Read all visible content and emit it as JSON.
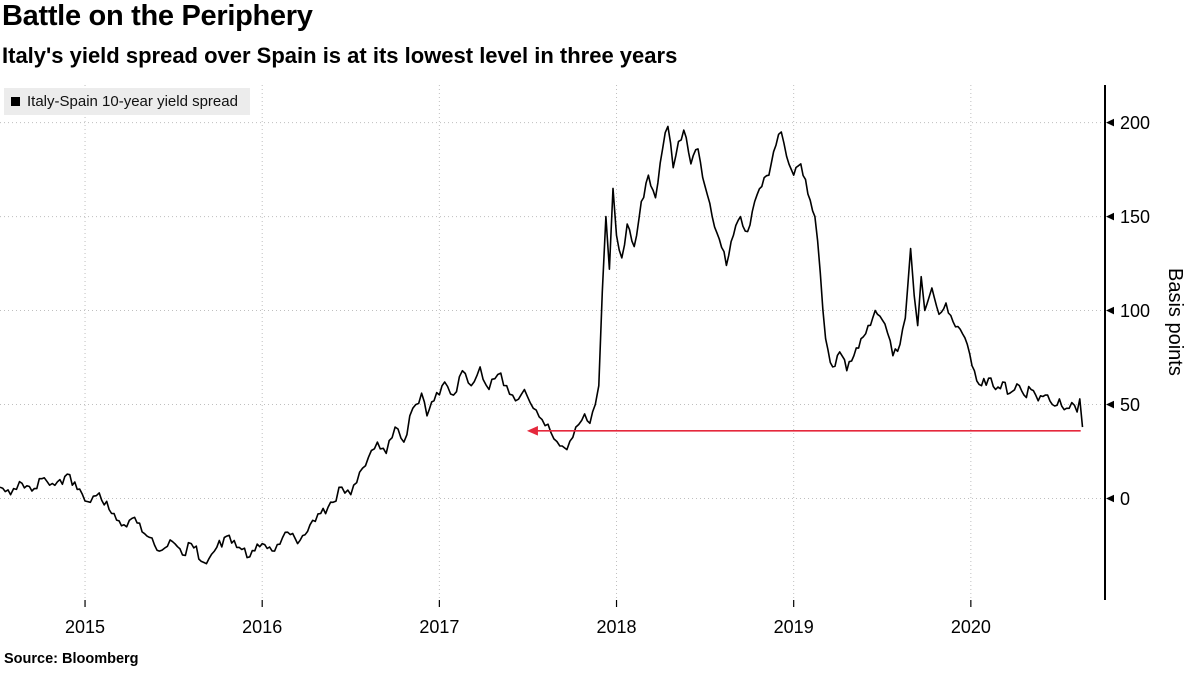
{
  "chart_data": {
    "type": "line",
    "title": "Battle on the Periphery",
    "subtitle": "Italy's yield spread over Spain is at its lowest level in three years",
    "xlabel": "",
    "ylabel": "Basis points",
    "x_ticks": [
      2015,
      2016,
      2017,
      2018,
      2019,
      2020
    ],
    "y_ticks": [
      0,
      50,
      100,
      150,
      200
    ],
    "xlim": [
      2014.52,
      2020.65
    ],
    "ylim": [
      -54,
      220
    ],
    "grid": true,
    "legend_position": "top-left",
    "series": [
      {
        "name": "Italy-Spain 10-year yield spread",
        "color": "#000000",
        "points": [
          [
            2014.52,
            6
          ],
          [
            2014.58,
            2
          ],
          [
            2014.63,
            9
          ],
          [
            2014.7,
            4
          ],
          [
            2014.77,
            11
          ],
          [
            2014.83,
            7
          ],
          [
            2014.9,
            13
          ],
          [
            2014.97,
            5
          ],
          [
            2015.03,
            -2
          ],
          [
            2015.08,
            3
          ],
          [
            2015.15,
            -8
          ],
          [
            2015.22,
            -14
          ],
          [
            2015.28,
            -10
          ],
          [
            2015.35,
            -20
          ],
          [
            2015.42,
            -28
          ],
          [
            2015.48,
            -22
          ],
          [
            2015.55,
            -30
          ],
          [
            2015.6,
            -24
          ],
          [
            2015.67,
            -34
          ],
          [
            2015.73,
            -28
          ],
          [
            2015.8,
            -20
          ],
          [
            2015.87,
            -26
          ],
          [
            2015.93,
            -31
          ],
          [
            2016,
            -24
          ],
          [
            2016.07,
            -28
          ],
          [
            2016.13,
            -18
          ],
          [
            2016.2,
            -24
          ],
          [
            2016.27,
            -14
          ],
          [
            2016.33,
            -8
          ],
          [
            2016.4,
            -2
          ],
          [
            2016.45,
            6
          ],
          [
            2016.5,
            2
          ],
          [
            2016.55,
            14
          ],
          [
            2016.6,
            22
          ],
          [
            2016.65,
            30
          ],
          [
            2016.7,
            24
          ],
          [
            2016.75,
            38
          ],
          [
            2016.8,
            30
          ],
          [
            2016.85,
            48
          ],
          [
            2016.9,
            56
          ],
          [
            2016.93,
            44
          ],
          [
            2016.97,
            52
          ],
          [
            2017.03,
            62
          ],
          [
            2017.08,
            55
          ],
          [
            2017.13,
            68
          ],
          [
            2017.18,
            60
          ],
          [
            2017.23,
            70
          ],
          [
            2017.28,
            58
          ],
          [
            2017.33,
            66
          ],
          [
            2017.38,
            60
          ],
          [
            2017.43,
            52
          ],
          [
            2017.48,
            58
          ],
          [
            2017.53,
            48
          ],
          [
            2017.58,
            42
          ],
          [
            2017.63,
            35
          ],
          [
            2017.68,
            28
          ],
          [
            2017.72,
            26
          ],
          [
            2017.77,
            38
          ],
          [
            2017.82,
            45
          ],
          [
            2017.85,
            40
          ],
          [
            2017.88,
            50
          ],
          [
            2017.9,
            60
          ],
          [
            2017.92,
            110
          ],
          [
            2017.94,
            150
          ],
          [
            2017.96,
            122
          ],
          [
            2017.98,
            165
          ],
          [
            2018,
            140
          ],
          [
            2018.03,
            128
          ],
          [
            2018.06,
            146
          ],
          [
            2018.1,
            134
          ],
          [
            2018.14,
            158
          ],
          [
            2018.18,
            172
          ],
          [
            2018.22,
            160
          ],
          [
            2018.26,
            186
          ],
          [
            2018.29,
            198
          ],
          [
            2018.32,
            176
          ],
          [
            2018.35,
            190
          ],
          [
            2018.38,
            196
          ],
          [
            2018.42,
            178
          ],
          [
            2018.46,
            186
          ],
          [
            2018.5,
            166
          ],
          [
            2018.54,
            150
          ],
          [
            2018.58,
            138
          ],
          [
            2018.62,
            124
          ],
          [
            2018.66,
            140
          ],
          [
            2018.7,
            150
          ],
          [
            2018.74,
            142
          ],
          [
            2018.78,
            158
          ],
          [
            2018.82,
            166
          ],
          [
            2018.86,
            172
          ],
          [
            2018.9,
            188
          ],
          [
            2018.93,
            195
          ],
          [
            2018.96,
            182
          ],
          [
            2019,
            172
          ],
          [
            2019.04,
            178
          ],
          [
            2019.08,
            162
          ],
          [
            2019.12,
            150
          ],
          [
            2019.15,
            120
          ],
          [
            2019.18,
            85
          ],
          [
            2019.22,
            70
          ],
          [
            2019.26,
            78
          ],
          [
            2019.3,
            68
          ],
          [
            2019.34,
            76
          ],
          [
            2019.38,
            85
          ],
          [
            2019.42,
            92
          ],
          [
            2019.46,
            100
          ],
          [
            2019.5,
            95
          ],
          [
            2019.53,
            88
          ],
          [
            2019.56,
            76
          ],
          [
            2019.6,
            82
          ],
          [
            2019.63,
            96
          ],
          [
            2019.66,
            133
          ],
          [
            2019.68,
            108
          ],
          [
            2019.7,
            92
          ],
          [
            2019.72,
            118
          ],
          [
            2019.74,
            100
          ],
          [
            2019.78,
            112
          ],
          [
            2019.82,
            98
          ],
          [
            2019.86,
            104
          ],
          [
            2019.9,
            94
          ],
          [
            2019.94,
            90
          ],
          [
            2019.98,
            82
          ],
          [
            2020.02,
            68
          ],
          [
            2020.06,
            60
          ],
          [
            2020.1,
            64
          ],
          [
            2020.14,
            58
          ],
          [
            2020.18,
            62
          ],
          [
            2020.22,
            56
          ],
          [
            2020.26,
            61
          ],
          [
            2020.3,
            55
          ],
          [
            2020.34,
            58
          ],
          [
            2020.38,
            52
          ],
          [
            2020.42,
            55
          ],
          [
            2020.46,
            50
          ],
          [
            2020.5,
            53
          ],
          [
            2020.54,
            48
          ],
          [
            2020.57,
            51
          ],
          [
            2020.6,
            46
          ],
          [
            2020.615,
            53
          ],
          [
            2020.63,
            38
          ]
        ]
      }
    ],
    "annotation": {
      "type": "horizontal-arrow",
      "direction": "left",
      "y": 36,
      "x_start": 2017.5,
      "x_end": 2020.62,
      "color": "#e5283c"
    }
  },
  "source": "Source:  Bloomberg",
  "colors": {
    "background": "#ffffff",
    "line": "#000000",
    "grid": "#bfbfbf",
    "legend_bg": "#ececec",
    "arrow_red": "#e5283c",
    "text": "#000000"
  }
}
